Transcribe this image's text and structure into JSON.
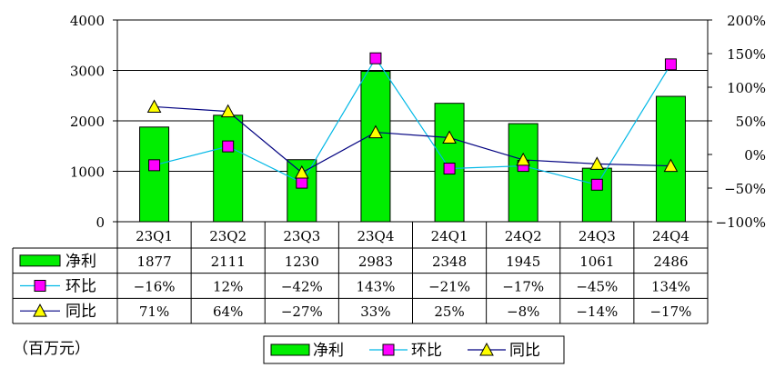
{
  "chart_data": {
    "type": "bar",
    "categories": [
      "23Q1",
      "23Q2",
      "23Q3",
      "23Q4",
      "24Q1",
      "24Q2",
      "24Q3",
      "24Q4"
    ],
    "series": [
      {
        "name": "净利",
        "kind": "bar",
        "axis": "left",
        "color": "#00ee00",
        "values": [
          1877,
          2111,
          1230,
          2983,
          2348,
          1945,
          1061,
          2486
        ],
        "labels": [
          "1877",
          "2111",
          "1230",
          "2983",
          "2348",
          "1945",
          "1061",
          "2486"
        ]
      },
      {
        "name": "环比",
        "kind": "line",
        "axis": "right",
        "color": "#00b8e6",
        "marker": "square",
        "marker_color": "#ff00ff",
        "values": [
          -16,
          12,
          -42,
          143,
          -21,
          -17,
          -45,
          134
        ],
        "labels": [
          "−16%",
          "12%",
          "−42%",
          "143%",
          "−21%",
          "−17%",
          "−45%",
          "134%"
        ]
      },
      {
        "name": "同比",
        "kind": "line",
        "axis": "right",
        "color": "#000080",
        "marker": "triangle",
        "marker_color": "#ffff00",
        "values": [
          71,
          64,
          -27,
          33,
          25,
          -8,
          -14,
          -17
        ],
        "labels": [
          "71%",
          "64%",
          "−27%",
          "33%",
          "25%",
          "−8%",
          "−14%",
          "−17%"
        ]
      }
    ],
    "y_left": {
      "ylim": [
        0,
        4000
      ],
      "ticks": [
        0,
        1000,
        2000,
        3000,
        4000
      ],
      "tick_labels": [
        "0",
        "1000",
        "2000",
        "3000",
        "4000"
      ]
    },
    "y_right": {
      "ylim": [
        -100,
        200
      ],
      "ticks": [
        -100,
        -50,
        0,
        50,
        100,
        150,
        200
      ],
      "tick_labels": [
        "−100%",
        "−50%",
        "0%",
        "50%",
        "100%",
        "150%",
        "200%"
      ]
    },
    "unit_label": "（百万元）",
    "grid": true,
    "data_table": true,
    "legend_position": "bottom"
  }
}
